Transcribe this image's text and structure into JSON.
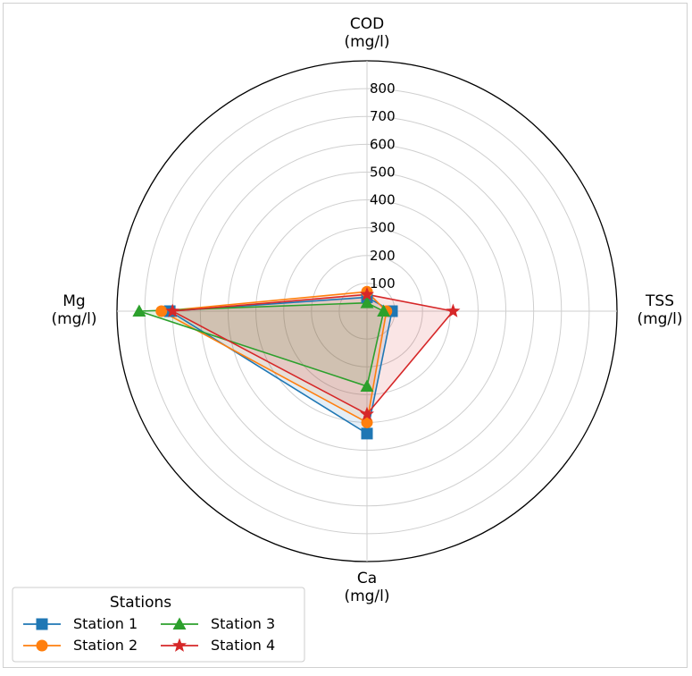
{
  "chart_data": {
    "type": "radar",
    "axes": [
      {
        "line1": "COD",
        "line2": "(mg/l)"
      },
      {
        "line1": "TSS",
        "line2": "(mg/l)"
      },
      {
        "line1": "Ca",
        "line2": "(mg/l)"
      },
      {
        "line1": "Mg",
        "line2": "(mg/l)"
      }
    ],
    "rlim": [
      0,
      900
    ],
    "rticks": [
      100,
      200,
      300,
      400,
      500,
      600,
      700,
      800
    ],
    "rtick_labels": [
      "100",
      "200",
      "300",
      "400",
      "500",
      "600",
      "700",
      "800"
    ],
    "grid": true,
    "series": [
      {
        "name": "Station 1",
        "values": [
          50,
          90,
          440,
          710
        ],
        "color": "#1f77b4",
        "marker": "square"
      },
      {
        "name": "Station 2",
        "values": [
          70,
          70,
          400,
          740
        ],
        "color": "#ff7f0e",
        "marker": "circle"
      },
      {
        "name": "Station 3",
        "values": [
          30,
          60,
          270,
          820
        ],
        "color": "#2ca02c",
        "marker": "triangle"
      },
      {
        "name": "Station 4",
        "values": [
          60,
          310,
          370,
          700
        ],
        "color": "#d62728",
        "marker": "star"
      }
    ],
    "legend": {
      "title": "Stations",
      "placement": "lower-left"
    }
  }
}
